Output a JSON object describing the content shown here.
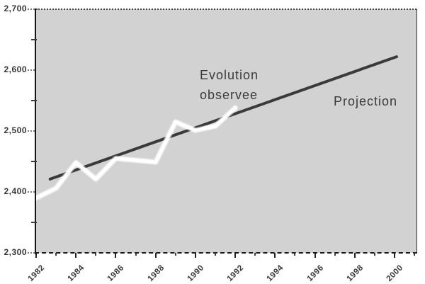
{
  "chart_data": {
    "type": "line",
    "title": "",
    "xlabel": "",
    "ylabel": "",
    "xlim": [
      1982,
      2001.1
    ],
    "ylim": [
      2300,
      2700
    ],
    "grid": "off",
    "legend_position": "none",
    "plot_bg_color": "#d2d2d2",
    "axis_color": "#1a1a1a",
    "text_color": "#3b3b3b",
    "x_axis": {
      "tick_years": [
        1982,
        1984,
        1986,
        1988,
        1990,
        1992,
        1994,
        1996,
        1998,
        2000
      ],
      "tick_labels": [
        "1982",
        "1984",
        "1986",
        "1988",
        "1990",
        "1992",
        "1994",
        "1996",
        "1998",
        "2000"
      ],
      "minor_years": [
        1983,
        1985,
        1987,
        1989,
        1991,
        1993,
        1995,
        1997,
        1999,
        2001
      ]
    },
    "y_axis": {
      "tick_values": [
        2700,
        2600,
        2500,
        2400,
        2300
      ],
      "tick_labels": [
        "2,700",
        "2,600",
        "2,500",
        "2,400",
        "2,300"
      ],
      "minor_values": [
        2650,
        2550,
        2450,
        2350
      ]
    },
    "series": [
      {
        "name": "Evolution observee",
        "color": "#ffffff",
        "stroke_width": 5,
        "x": [
          1982,
          1983,
          1984,
          1985,
          1986,
          1987,
          1988,
          1989,
          1990,
          1991,
          1992
        ],
        "values": [
          2390,
          2406,
          2448,
          2421,
          2455,
          2452,
          2449,
          2515,
          2501,
          2508,
          2538
        ]
      },
      {
        "name": "Projection",
        "color": "#3a3a3a",
        "stroke_width": 4,
        "x": [
          1982.7,
          2000.1
        ],
        "values": [
          2421,
          2622
        ]
      }
    ],
    "annotations": [
      {
        "text_lines": [
          "Evolution",
          "observee"
        ],
        "target_series": "Evolution observee"
      },
      {
        "text_lines": [
          "Projection"
        ],
        "target_series": "Projection"
      }
    ]
  }
}
